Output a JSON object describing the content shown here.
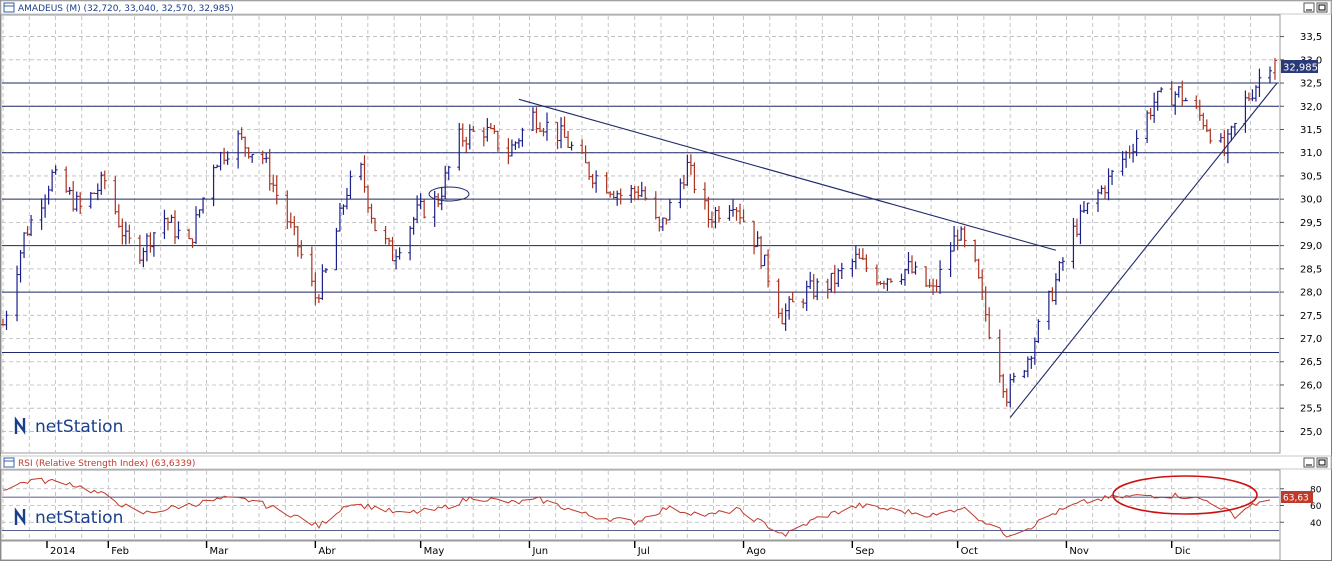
{
  "main_panel": {
    "title": "AMADEUS (M) (32,720, 33,040, 32,570, 32,985)",
    "last_price_label": "32,985",
    "logo_text": "netStation",
    "y_ticks": [
      "33,5",
      "33,0",
      "32,5",
      "32,0",
      "31,5",
      "31,0",
      "30,5",
      "30,0",
      "29,5",
      "29,0",
      "28,5",
      "28,0",
      "27,5",
      "27,0",
      "26,5",
      "26,0",
      "25,5",
      "25,0"
    ]
  },
  "rsi_panel": {
    "title": "RSI (Relative Strength Index) (63,6339)",
    "last_value_label": "63,63",
    "logo_text": "netStation",
    "y_ticks": [
      "80",
      "60",
      "40"
    ]
  },
  "x_axis": {
    "labels": [
      "2014",
      "Feb",
      "Mar",
      "Abr",
      "May",
      "Jun",
      "Jul",
      "Ago",
      "Sep",
      "Oct",
      "Nov",
      "Dic"
    ]
  },
  "colors": {
    "up_bar": "#1b1f8a",
    "down_bar": "#a8321e",
    "line": "#1f2a6b",
    "rsi_line": "#c0392b",
    "grid": "#b8b8b8",
    "highlight_ellipse": "#d01010",
    "price_marker": "#2a3a78",
    "rsi_marker": "#c0392b"
  },
  "chart_data": [
    {
      "type": "ohlc",
      "title": "AMADEUS (M) (32,720, 33,040, 32,570, 32,985)",
      "series_name": "AMADEUS",
      "x_range": [
        "2014-01-02",
        "2014-12-31"
      ],
      "ylim": [
        24.6,
        33.9
      ],
      "grid": true,
      "last": {
        "open": 32.72,
        "high": 33.04,
        "low": 32.57,
        "close": 32.985
      },
      "horizontal_levels": [
        32.5,
        32.0,
        31.0,
        30.0,
        29.0,
        28.0,
        26.7
      ],
      "trend_lines": [
        {
          "from": {
            "date": "2014-05-29",
            "price": 32.15
          },
          "to": {
            "date": "2014-10-29",
            "price": 28.9
          }
        },
        {
          "from": {
            "date": "2014-10-16",
            "price": 25.3
          },
          "to": {
            "date": "2014-12-31",
            "price": 32.5
          }
        }
      ],
      "anchors": [
        {
          "date": "2014-01-02",
          "price": 27.3
        },
        {
          "date": "2014-01-08",
          "price": 29.2
        },
        {
          "date": "2014-01-16",
          "price": 30.5
        },
        {
          "date": "2014-01-24",
          "price": 29.8
        },
        {
          "date": "2014-01-31",
          "price": 30.4
        },
        {
          "date": "2014-02-06",
          "price": 29.1
        },
        {
          "date": "2014-02-10",
          "price": 28.9
        },
        {
          "date": "2014-02-17",
          "price": 29.6
        },
        {
          "date": "2014-02-24",
          "price": 29.0
        },
        {
          "date": "2014-03-03",
          "price": 30.8
        },
        {
          "date": "2014-03-10",
          "price": 31.3
        },
        {
          "date": "2014-03-13",
          "price": 31.1
        },
        {
          "date": "2014-03-17",
          "price": 30.9
        },
        {
          "date": "2014-03-21",
          "price": 30.1
        },
        {
          "date": "2014-03-27",
          "price": 29.0
        },
        {
          "date": "2014-04-01",
          "price": 27.9
        },
        {
          "date": "2014-04-04",
          "price": 28.4
        },
        {
          "date": "2014-04-10",
          "price": 30.2
        },
        {
          "date": "2014-04-14",
          "price": 30.6
        },
        {
          "date": "2014-04-18",
          "price": 29.4
        },
        {
          "date": "2014-04-23",
          "price": 28.8
        },
        {
          "date": "2014-04-30",
          "price": 29.7
        },
        {
          "date": "2014-05-06",
          "price": 30.0
        },
        {
          "date": "2014-05-12",
          "price": 31.3
        },
        {
          "date": "2014-05-19",
          "price": 31.5
        },
        {
          "date": "2014-05-26",
          "price": 31.0
        },
        {
          "date": "2014-06-02",
          "price": 31.8
        },
        {
          "date": "2014-06-11",
          "price": 31.3
        },
        {
          "date": "2014-06-18",
          "price": 30.6
        },
        {
          "date": "2014-06-27",
          "price": 30.1
        },
        {
          "date": "2014-07-03",
          "price": 30.2
        },
        {
          "date": "2014-07-08",
          "price": 29.3
        },
        {
          "date": "2014-07-16",
          "price": 30.7
        },
        {
          "date": "2014-07-22",
          "price": 29.6
        },
        {
          "date": "2014-07-29",
          "price": 30.0
        },
        {
          "date": "2014-08-05",
          "price": 29.0
        },
        {
          "date": "2014-08-12",
          "price": 27.5
        },
        {
          "date": "2014-08-19",
          "price": 28.0
        },
        {
          "date": "2014-08-26",
          "price": 28.2
        },
        {
          "date": "2014-09-02",
          "price": 28.7
        },
        {
          "date": "2014-09-09",
          "price": 28.3
        },
        {
          "date": "2014-09-17",
          "price": 28.5
        },
        {
          "date": "2014-09-24",
          "price": 28.0
        },
        {
          "date": "2014-10-01",
          "price": 29.3
        },
        {
          "date": "2014-10-06",
          "price": 28.5
        },
        {
          "date": "2014-10-10",
          "price": 27.2
        },
        {
          "date": "2014-10-15",
          "price": 25.8
        },
        {
          "date": "2014-10-21",
          "price": 26.6
        },
        {
          "date": "2014-10-27",
          "price": 27.8
        },
        {
          "date": "2014-11-03",
          "price": 29.3
        },
        {
          "date": "2014-11-07",
          "price": 29.8
        },
        {
          "date": "2014-11-13",
          "price": 30.4
        },
        {
          "date": "2014-11-20",
          "price": 31.2
        },
        {
          "date": "2014-11-26",
          "price": 32.1
        },
        {
          "date": "2014-12-03",
          "price": 32.3
        },
        {
          "date": "2014-12-10",
          "price": 31.7
        },
        {
          "date": "2014-12-16",
          "price": 31.0
        },
        {
          "date": "2014-12-22",
          "price": 32.1
        },
        {
          "date": "2014-12-29",
          "price": 32.985
        }
      ]
    },
    {
      "type": "line",
      "title": "RSI (Relative Strength Index) (63,6339)",
      "series_name": "RSI",
      "x_range": [
        "2014-01-02",
        "2014-12-31"
      ],
      "ylim": [
        20,
        100
      ],
      "grid": true,
      "last_value": 63.6339,
      "reference_levels": [
        70,
        30
      ],
      "anchors": [
        {
          "date": "2014-01-02",
          "value": 80
        },
        {
          "date": "2014-01-10",
          "value": 90
        },
        {
          "date": "2014-01-20",
          "value": 88
        },
        {
          "date": "2014-01-31",
          "value": 72
        },
        {
          "date": "2014-02-10",
          "value": 50
        },
        {
          "date": "2014-02-20",
          "value": 58
        },
        {
          "date": "2014-03-06",
          "value": 68
        },
        {
          "date": "2014-03-14",
          "value": 66
        },
        {
          "date": "2014-03-26",
          "value": 48
        },
        {
          "date": "2014-04-02",
          "value": 35
        },
        {
          "date": "2014-04-10",
          "value": 62
        },
        {
          "date": "2014-04-18",
          "value": 58
        },
        {
          "date": "2014-04-25",
          "value": 50
        },
        {
          "date": "2014-05-06",
          "value": 55
        },
        {
          "date": "2014-05-16",
          "value": 70
        },
        {
          "date": "2014-05-28",
          "value": 63
        },
        {
          "date": "2014-06-04",
          "value": 67
        },
        {
          "date": "2014-06-18",
          "value": 48
        },
        {
          "date": "2014-07-01",
          "value": 40
        },
        {
          "date": "2014-07-10",
          "value": 57
        },
        {
          "date": "2014-07-22",
          "value": 48
        },
        {
          "date": "2014-07-30",
          "value": 55
        },
        {
          "date": "2014-08-13",
          "value": 25
        },
        {
          "date": "2014-08-22",
          "value": 45
        },
        {
          "date": "2014-09-03",
          "value": 60
        },
        {
          "date": "2014-09-12",
          "value": 55
        },
        {
          "date": "2014-09-25",
          "value": 48
        },
        {
          "date": "2014-10-02",
          "value": 58
        },
        {
          "date": "2014-10-15",
          "value": 25
        },
        {
          "date": "2014-10-22",
          "value": 35
        },
        {
          "date": "2014-10-28",
          "value": 50
        },
        {
          "date": "2014-11-05",
          "value": 63
        },
        {
          "date": "2014-11-13",
          "value": 69
        },
        {
          "date": "2014-11-24",
          "value": 72
        },
        {
          "date": "2014-12-03",
          "value": 72
        },
        {
          "date": "2014-12-12",
          "value": 65
        },
        {
          "date": "2014-12-19",
          "value": 48
        },
        {
          "date": "2014-12-24",
          "value": 62
        },
        {
          "date": "2014-12-29",
          "value": 63.63
        }
      ]
    }
  ]
}
